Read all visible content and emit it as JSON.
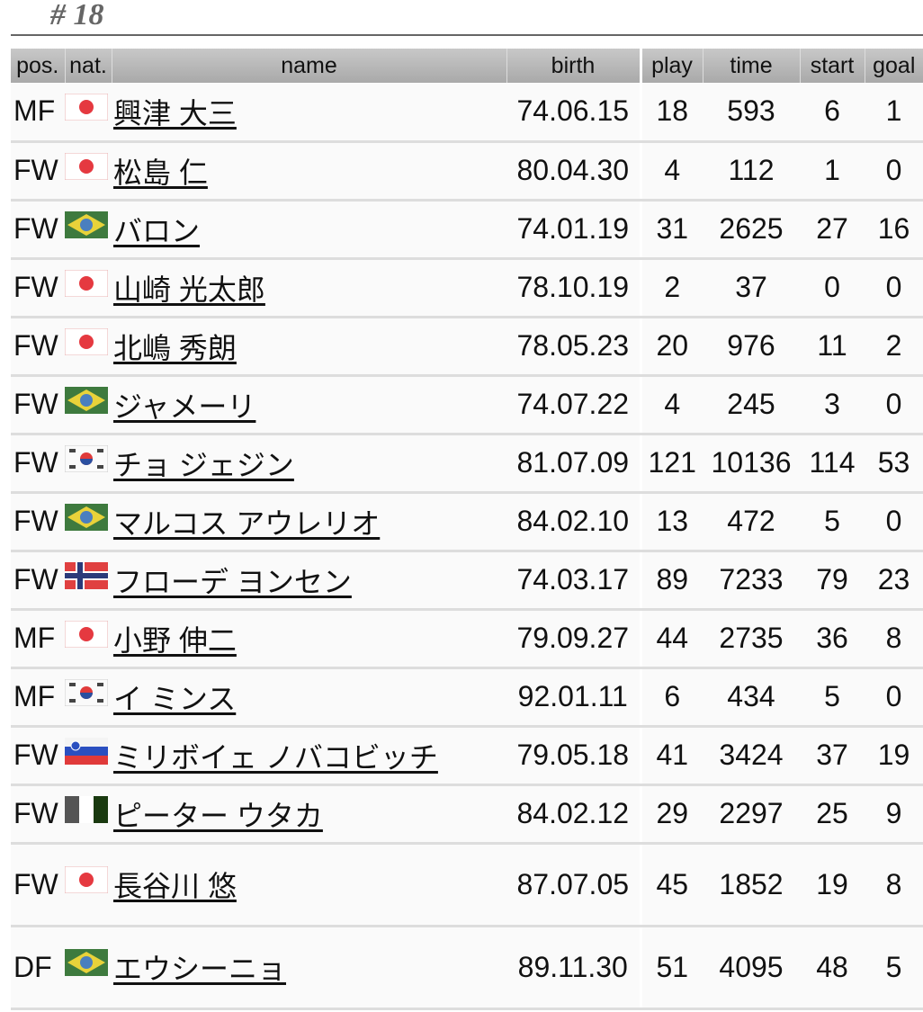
{
  "title": "# 18",
  "headers": {
    "pos": "pos.",
    "nat": "nat.",
    "name": "name",
    "birth": "birth",
    "play": "play",
    "time": "time",
    "start": "start",
    "goal": "goal"
  },
  "players": [
    {
      "pos": "MF",
      "nat": "japan",
      "name": "興津 大三",
      "birth": "74.06.15",
      "play": "18",
      "time": "593",
      "start": "6",
      "goal": "1"
    },
    {
      "pos": "FW",
      "nat": "japan",
      "name": "松島 仁",
      "birth": "80.04.30",
      "play": "4",
      "time": "112",
      "start": "1",
      "goal": "0"
    },
    {
      "pos": "FW",
      "nat": "brazil",
      "name": "バロン",
      "birth": "74.01.19",
      "play": "31",
      "time": "2625",
      "start": "27",
      "goal": "16"
    },
    {
      "pos": "FW",
      "nat": "japan",
      "name": "山崎 光太郎",
      "birth": "78.10.19",
      "play": "2",
      "time": "37",
      "start": "0",
      "goal": "0"
    },
    {
      "pos": "FW",
      "nat": "japan",
      "name": "北嶋 秀朗",
      "birth": "78.05.23",
      "play": "20",
      "time": "976",
      "start": "11",
      "goal": "2"
    },
    {
      "pos": "FW",
      "nat": "brazil",
      "name": "ジャメーリ",
      "birth": "74.07.22",
      "play": "4",
      "time": "245",
      "start": "3",
      "goal": "0"
    },
    {
      "pos": "FW",
      "nat": "korea",
      "name": "チョ ジェジン",
      "birth": "81.07.09",
      "play": "121",
      "time": "10136",
      "start": "114",
      "goal": "53"
    },
    {
      "pos": "FW",
      "nat": "brazil",
      "name": "マルコス アウレリオ",
      "birth": "84.02.10",
      "play": "13",
      "time": "472",
      "start": "5",
      "goal": "0"
    },
    {
      "pos": "FW",
      "nat": "norway",
      "name": "フローデ ヨンセン",
      "birth": "74.03.17",
      "play": "89",
      "time": "7233",
      "start": "79",
      "goal": "23"
    },
    {
      "pos": "MF",
      "nat": "japan",
      "name": "小野 伸二",
      "birth": "79.09.27",
      "play": "44",
      "time": "2735",
      "start": "36",
      "goal": "8"
    },
    {
      "pos": "MF",
      "nat": "korea",
      "name": "イ ミンス",
      "birth": "92.01.11",
      "play": "6",
      "time": "434",
      "start": "5",
      "goal": "0"
    },
    {
      "pos": "FW",
      "nat": "slovenia",
      "name": "ミリボイェ ノバコビッチ",
      "birth": "79.05.18",
      "play": "41",
      "time": "3424",
      "start": "37",
      "goal": "19"
    },
    {
      "pos": "FW",
      "nat": "nigeria",
      "name": "ピーター ウタカ",
      "birth": "84.02.12",
      "play": "29",
      "time": "2297",
      "start": "25",
      "goal": "9"
    },
    {
      "pos": "FW",
      "nat": "japan",
      "name": "長谷川 悠",
      "birth": "87.07.05",
      "play": "45",
      "time": "1852",
      "start": "19",
      "goal": "8"
    },
    {
      "pos": "DF",
      "nat": "brazil",
      "name": "エウシーニョ",
      "birth": "89.11.30",
      "play": "51",
      "time": "4095",
      "start": "48",
      "goal": "5"
    }
  ]
}
